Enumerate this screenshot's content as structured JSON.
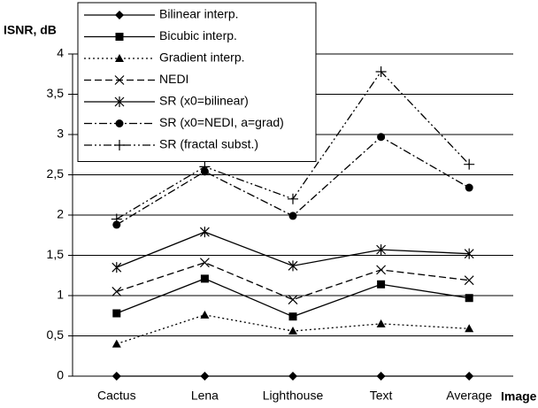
{
  "chart_data": {
    "type": "line",
    "y_label": "ISNR, dB",
    "x_label": "Image",
    "categories": [
      "Cactus",
      "Lena",
      "Lighthouse",
      "Text",
      "Average"
    ],
    "ylim": [
      0,
      4
    ],
    "yticks": [
      0,
      {
        "value": 0.5,
        "label": "0,5"
      },
      1,
      {
        "value": 1.5,
        "label": "1,5"
      },
      2,
      {
        "value": 2.5,
        "label": "2,5"
      },
      3,
      {
        "value": 3.5,
        "label": "3,5"
      },
      4
    ],
    "grid": true,
    "legend": "top-left",
    "series": [
      {
        "name": "Bilinear interp.",
        "color": "#000000",
        "marker": "diamond",
        "dash": "solid",
        "values": [
          0,
          0,
          0,
          0,
          0
        ]
      },
      {
        "name": "Bicubic interp.",
        "color": "#000000",
        "marker": "square",
        "dash": "solid",
        "values": [
          0.78,
          1.21,
          0.74,
          1.14,
          0.97
        ]
      },
      {
        "name": "Gradient interp.",
        "color": "#000000",
        "marker": "triangle",
        "dash": "dotted",
        "values": [
          0.4,
          0.76,
          0.56,
          0.65,
          0.59
        ]
      },
      {
        "name": "NEDI",
        "color": "#000000",
        "marker": "x",
        "dash": "dashed",
        "values": [
          1.05,
          1.41,
          0.95,
          1.32,
          1.19
        ]
      },
      {
        "name": "SR (x0=bilinear)",
        "color": "#000000",
        "marker": "asterisk",
        "dash": "solid",
        "values": [
          1.35,
          1.79,
          1.37,
          1.57,
          1.52
        ]
      },
      {
        "name": "SR (x0=NEDI, a=grad)",
        "color": "#000000",
        "marker": "circle",
        "dash": "dashdot",
        "values": [
          1.88,
          2.54,
          1.99,
          2.97,
          2.34
        ]
      },
      {
        "name": "SR (fractal subst.)",
        "color": "#000000",
        "marker": "plus",
        "dash": "dashdotdot",
        "values": [
          1.95,
          2.6,
          2.2,
          3.78,
          2.63
        ]
      }
    ]
  }
}
